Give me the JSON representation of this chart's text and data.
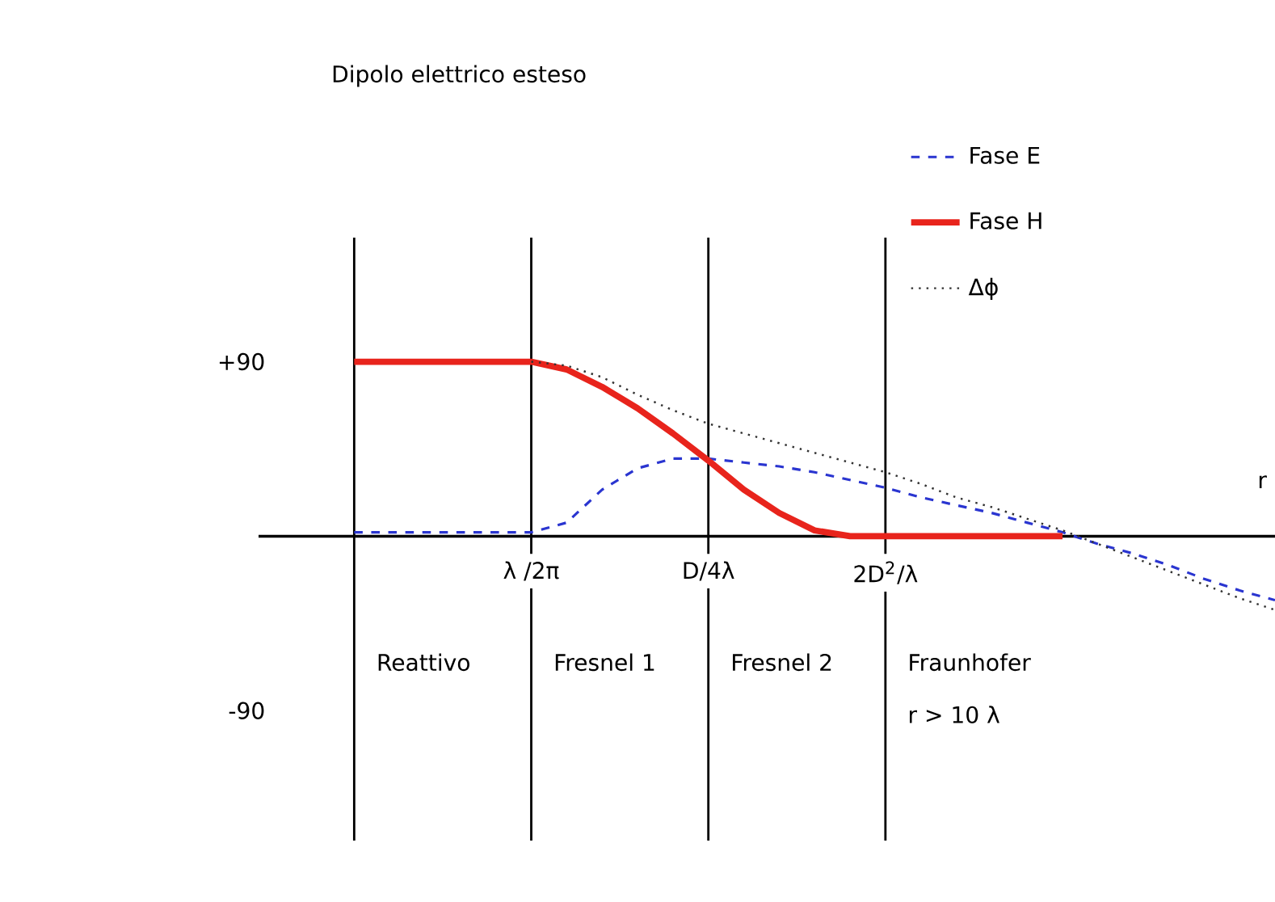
{
  "chart_data": {
    "type": "line",
    "title": "Dipolo elettrico esteso",
    "xlabel": "r",
    "categories": [
      null,
      null,
      null,
      null,
      null,
      "λ /2π",
      null,
      null,
      null,
      null,
      "D/4λ",
      null,
      null,
      null,
      null,
      "2D$^{2}$/λ",
      null,
      null,
      null,
      null,
      null,
      null,
      null,
      null,
      null,
      null,
      null
    ],
    "ylim": [
      -157,
      154
    ],
    "yticks": [
      {
        "value": 90,
        "label": "+90"
      },
      -90
    ],
    "series": [
      {
        "name": "Fase E",
        "color": "#2a35d0",
        "line_style": "dashed",
        "values": [
          2,
          2,
          2,
          2,
          2,
          2,
          7,
          24,
          35,
          40,
          40,
          38,
          36,
          33,
          29,
          25,
          20,
          16,
          12,
          7,
          2,
          -4,
          -9,
          -15,
          -22,
          -28,
          -33
        ]
      },
      {
        "name": "Fase H",
        "color": "#e8241c",
        "line_style": "solid",
        "values": [
          90,
          90,
          90,
          90,
          90,
          90,
          86,
          77,
          66,
          53,
          39,
          24,
          12,
          3,
          0,
          0,
          0,
          0,
          0,
          0,
          0,
          null,
          null,
          null,
          null,
          null,
          null
        ]
      },
      {
        "name": "Δϕ",
        "color": "#333333",
        "line_style": "dotted",
        "values": [
          null,
          null,
          null,
          null,
          null,
          90,
          88,
          82,
          73,
          65,
          58,
          53,
          48,
          43,
          38,
          33,
          27,
          20,
          15,
          9,
          3,
          -4,
          -11,
          -18,
          -25,
          -32,
          -38
        ]
      }
    ],
    "grid": "x",
    "annotations": [
      "Reattivo",
      "Fresnel 1",
      "Fresnel 2",
      "Fraunhofer",
      "r > 10 λ"
    ],
    "legend": "top right"
  }
}
